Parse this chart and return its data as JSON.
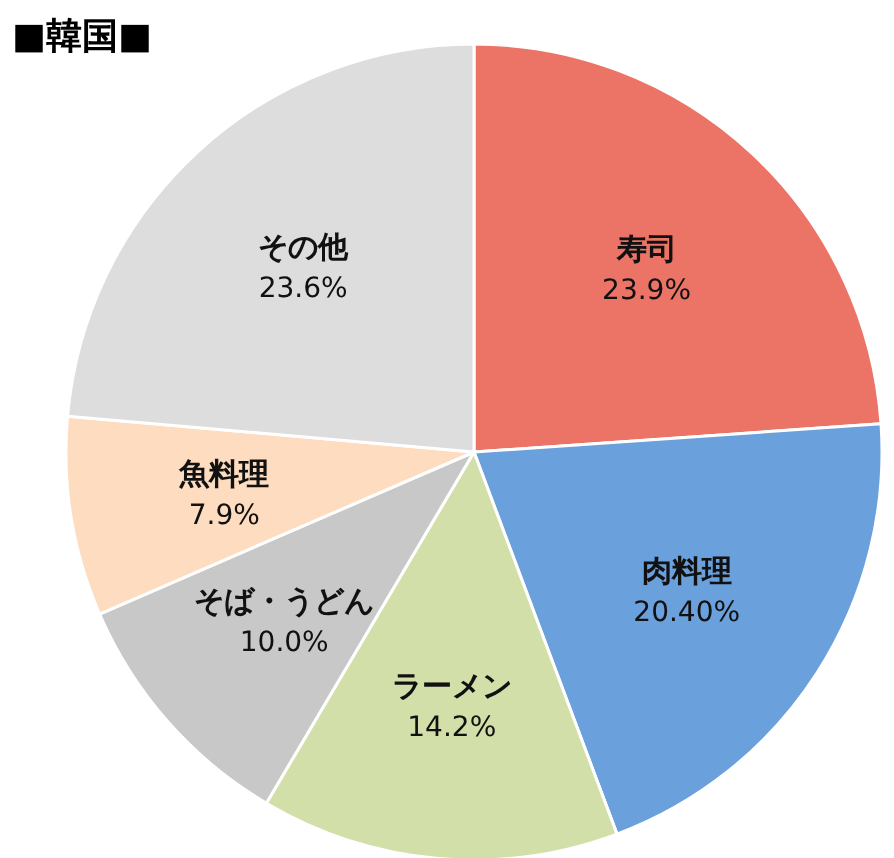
{
  "chart_data": {
    "type": "pie",
    "title": "■韓国■",
    "categories": [
      "寿司",
      "肉料理",
      "ラーメン",
      "そば・うどん",
      "魚料理",
      "その他"
    ],
    "values": [
      23.9,
      20.4,
      14.2,
      10.0,
      7.9,
      23.6
    ],
    "value_labels": [
      "23.9%",
      "20.40%",
      "14.2%",
      "10.0%",
      "7.9%",
      "23.6%"
    ],
    "colors": [
      "#ec7467",
      "#6aa0dc",
      "#d3dfa9",
      "#c8c8c8",
      "#fddcc0",
      "#dddddd"
    ],
    "legend": false
  }
}
